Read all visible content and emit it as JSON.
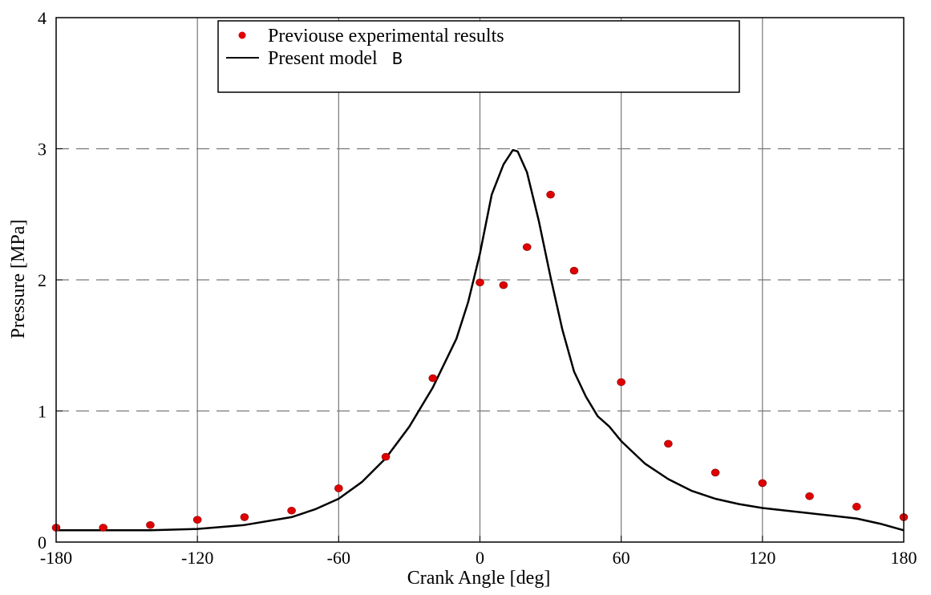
{
  "chart_data": {
    "type": "line",
    "xlabel": "Crank Angle [deg]",
    "ylabel": "Pressure [MPa]",
    "xlim": [
      -180,
      180
    ],
    "ylim": [
      0,
      4
    ],
    "x_ticks": [
      "-180",
      "-120",
      "-60",
      "0",
      "60",
      "120",
      "180"
    ],
    "x_tick_values": [
      -180,
      -120,
      -60,
      0,
      60,
      120,
      180
    ],
    "y_ticks": [
      "0",
      "1",
      "2",
      "3",
      "4"
    ],
    "y_tick_values": [
      0,
      1,
      2,
      3,
      4
    ],
    "grid": {
      "x": "solid-vertical",
      "y": "dashed-horizontal"
    },
    "legend_position": "top-center",
    "series": [
      {
        "name": "Previouse experimental results",
        "kind": "scatter",
        "color": "#e00000",
        "x": [
          -180,
          -160,
          -140,
          -120,
          -100,
          -80,
          -60,
          -40,
          -20,
          0,
          10,
          20,
          30,
          40,
          60,
          80,
          100,
          120,
          140,
          160,
          180
        ],
        "y": [
          0.11,
          0.11,
          0.13,
          0.17,
          0.19,
          0.24,
          0.41,
          0.65,
          1.25,
          1.98,
          1.96,
          2.25,
          2.65,
          2.07,
          1.22,
          0.75,
          0.53,
          0.45,
          0.35,
          0.27,
          0.19
        ]
      },
      {
        "name": "Present model",
        "name_suffix": "B",
        "kind": "line",
        "color": "#000000",
        "x": [
          -180,
          -160,
          -140,
          -120,
          -100,
          -80,
          -70,
          -60,
          -50,
          -40,
          -30,
          -20,
          -10,
          -5,
          0,
          5,
          10,
          14,
          16,
          20,
          25,
          30,
          35,
          40,
          45,
          50,
          55,
          60,
          70,
          80,
          90,
          100,
          110,
          120,
          130,
          140,
          150,
          160,
          170,
          180
        ],
        "y": [
          0.09,
          0.09,
          0.09,
          0.1,
          0.13,
          0.19,
          0.25,
          0.33,
          0.46,
          0.64,
          0.88,
          1.18,
          1.55,
          1.83,
          2.2,
          2.65,
          2.88,
          2.99,
          2.98,
          2.82,
          2.45,
          2.02,
          1.62,
          1.3,
          1.11,
          0.96,
          0.88,
          0.77,
          0.6,
          0.48,
          0.39,
          0.33,
          0.29,
          0.26,
          0.24,
          0.22,
          0.2,
          0.18,
          0.14,
          0.09
        ]
      }
    ]
  }
}
